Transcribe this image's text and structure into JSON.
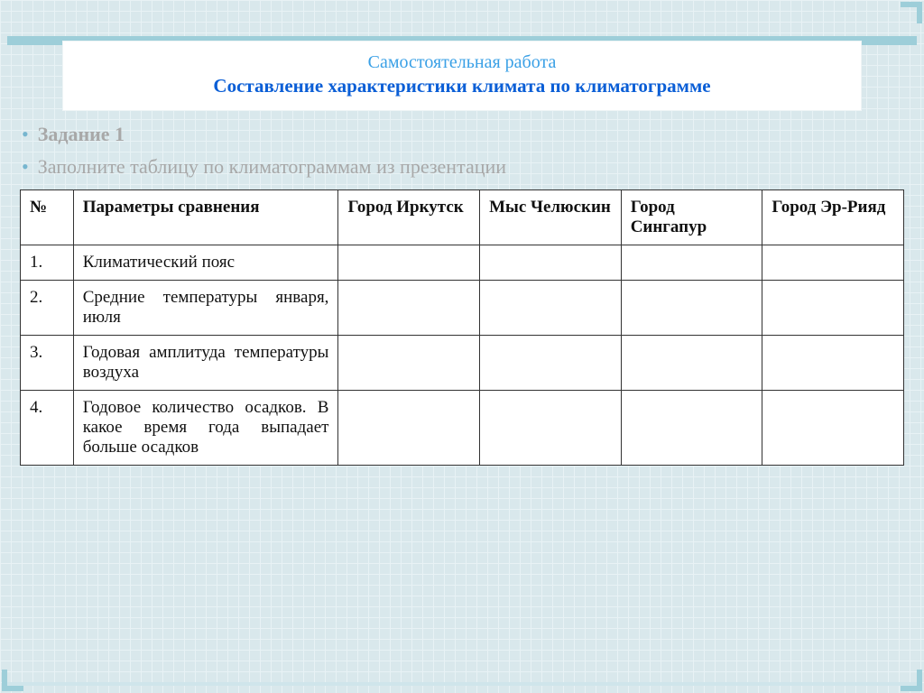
{
  "slide": {
    "title_line1": "Самостоятельная работа",
    "title_line2": "Составление характеристики климата по климатограмме",
    "task_heading": "Задание 1",
    "task_text": "Заполните таблицу по климатограммам из презентации"
  },
  "table": {
    "columns": [
      "№",
      "Параметры сравнения",
      "Город Иркутск",
      "Мыс Челюскин",
      "Город Сингапур",
      "Город Эр-Рияд"
    ],
    "rows": [
      {
        "num": "1.",
        "param": "Климатический пояс",
        "c1": "",
        "c2": "",
        "c3": "",
        "c4": ""
      },
      {
        "num": "2.",
        "param": "Средние температуры января, июля",
        "c1": "",
        "c2": "",
        "c3": "",
        "c4": ""
      },
      {
        "num": "3.",
        "param": "Годовая амплитуда температуры воздуха",
        "c1": "",
        "c2": "",
        "c3": "",
        "c4": ""
      },
      {
        "num": "4.",
        "param": "Годовое количество осадков. В какое время года выпадает больше осадков",
        "c1": "",
        "c2": "",
        "c3": "",
        "c4": ""
      }
    ]
  },
  "style": {
    "background_color": "#d9e8ec",
    "grid_color": "#e8f2f5",
    "accent_stripe_color": "#9dced9",
    "title_color_1": "#3aa0e6",
    "title_color_2": "#0a5ed6",
    "muted_text_color": "#a8a8a8",
    "bullet_color": "#77b6cf",
    "table_border_color": "#333333",
    "table_bg": "#ffffff",
    "title_fontsize_pt": 16,
    "subtitle_fontsize_pt": 16,
    "body_fontsize_pt": 17,
    "cell_fontsize_pt": 14,
    "col_widths_pct": [
      6,
      30,
      16,
      16,
      16,
      16
    ]
  }
}
